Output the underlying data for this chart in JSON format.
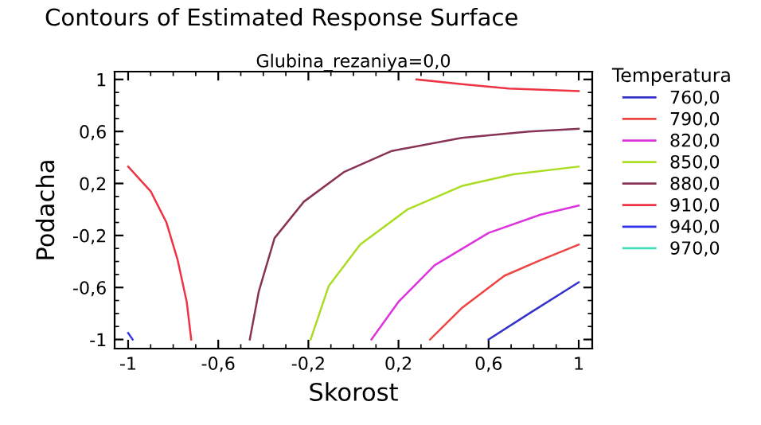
{
  "chart_data": {
    "type": "line",
    "title": "Contours of Estimated Response Surface",
    "subtitle": "Glubina_rezaniya=0,0",
    "xlabel": "Skorost",
    "ylabel": "Podacha",
    "legend_title": "Temperatura",
    "legend": "right",
    "grid": false,
    "marker": "none",
    "line_style": "solid",
    "xlim": [
      -1.06,
      1.06
    ],
    "ylim": [
      -1.07,
      1.06
    ],
    "xticks": [
      {
        "value": -1,
        "label": "-1"
      },
      {
        "value": -0.6,
        "label": "-0,6"
      },
      {
        "value": -0.2,
        "label": "-0,2"
      },
      {
        "value": 0.2,
        "label": "0,2"
      },
      {
        "value": 0.6,
        "label": "0,6"
      },
      {
        "value": 1,
        "label": "1"
      }
    ],
    "yticks": [
      {
        "value": -1,
        "label": "-1"
      },
      {
        "value": -0.6,
        "label": "-0,6"
      },
      {
        "value": -0.2,
        "label": "-0,2"
      },
      {
        "value": 0.2,
        "label": "0,2"
      },
      {
        "value": 0.6,
        "label": "0,6"
      },
      {
        "value": 1,
        "label": "1"
      }
    ],
    "series": [
      {
        "name": "760,0",
        "color": "#3333cc",
        "x": [
          0.6,
          0.78,
          1
        ],
        "values": [
          -1,
          -0.8,
          -0.56
        ]
      },
      {
        "name": "790,0",
        "color": "#ee4444",
        "x": [
          0.34,
          0.48,
          0.67,
          0.83,
          1
        ],
        "values": [
          -1,
          -0.76,
          -0.51,
          -0.39,
          -0.27
        ]
      },
      {
        "name": "820,0",
        "color": "#dd33dd",
        "x": [
          0.08,
          0.2,
          0.36,
          0.6,
          0.83,
          1
        ],
        "values": [
          -1,
          -0.71,
          -0.43,
          -0.18,
          -0.04,
          0.03
        ]
      },
      {
        "name": "850,0",
        "color": "#aadd22",
        "x": [
          -0.19,
          -0.11,
          0.03,
          0.24,
          0.48,
          0.71,
          1
        ],
        "values": [
          -1,
          -0.59,
          -0.27,
          0,
          0.18,
          0.27,
          0.33
        ]
      },
      {
        "name": "880,0",
        "color": "#883355",
        "x": [
          -0.46,
          -0.42,
          -0.35,
          -0.22,
          -0.04,
          0.17,
          0.48,
          0.78,
          1
        ],
        "values": [
          -1,
          -0.63,
          -0.22,
          0.06,
          0.29,
          0.45,
          0.55,
          0.6,
          0.62
        ]
      },
      {
        "name": "910,0",
        "color": "#ee3344",
        "x": [
          -1,
          -0.9,
          -0.83,
          -0.78,
          -0.74,
          -0.72,
          null,
          0.28,
          0.5,
          0.69,
          1
        ],
        "values": [
          0.33,
          0.14,
          -0.1,
          -0.39,
          -0.71,
          -1,
          null,
          1,
          0.96,
          0.93,
          0.91
        ]
      },
      {
        "name": "940,0",
        "color": "#3333ee",
        "x": [
          -1,
          -0.98
        ],
        "values": [
          -0.95,
          -1
        ]
      },
      {
        "name": "970,0",
        "color": "#44ddbb"
      }
    ]
  }
}
